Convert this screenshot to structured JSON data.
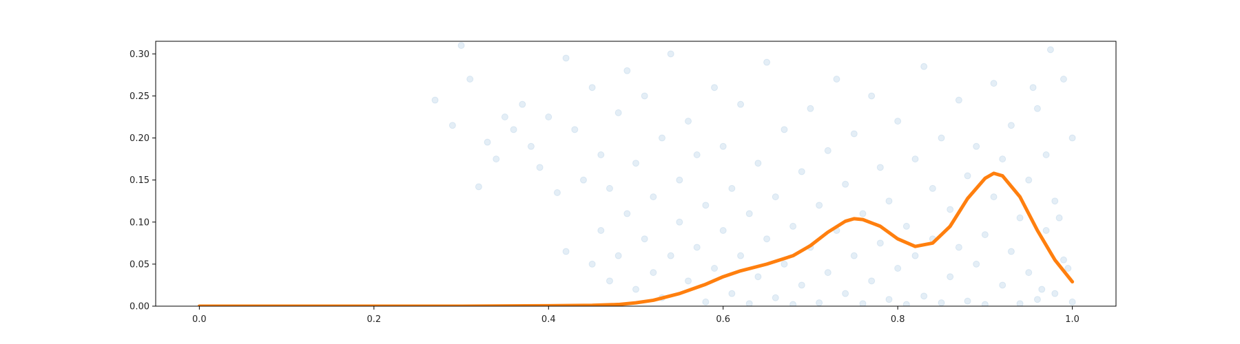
{
  "chart_data": {
    "type": "scatter",
    "title": "",
    "xlabel": "",
    "ylabel": "",
    "xlim": [
      -0.05,
      1.05
    ],
    "ylim": [
      0.0,
      0.315
    ],
    "x_ticks": [
      0.0,
      0.2,
      0.4,
      0.6,
      0.8,
      1.0
    ],
    "x_tick_labels": [
      "0.0",
      "0.2",
      "0.4",
      "0.6",
      "0.8",
      "1.0"
    ],
    "y_ticks": [
      0.0,
      0.05,
      0.1,
      0.15,
      0.2,
      0.25,
      0.3
    ],
    "y_tick_labels": [
      "0.00",
      "0.05",
      "0.10",
      "0.15",
      "0.20",
      "0.25",
      "0.30"
    ],
    "grid": false,
    "legend": "none",
    "series": [
      {
        "kind": "scatter",
        "color": "#1f77b4",
        "alpha": 0.12,
        "points": [
          [
            0.27,
            0.245
          ],
          [
            0.29,
            0.215
          ],
          [
            0.3,
            0.31
          ],
          [
            0.31,
            0.27
          ],
          [
            0.32,
            0.142
          ],
          [
            0.33,
            0.195
          ],
          [
            0.34,
            0.175
          ],
          [
            0.35,
            0.225
          ],
          [
            0.36,
            0.21
          ],
          [
            0.37,
            0.24
          ],
          [
            0.38,
            0.19
          ],
          [
            0.39,
            0.165
          ],
          [
            0.4,
            0.225
          ],
          [
            0.41,
            0.135
          ],
          [
            0.42,
            0.065
          ],
          [
            0.42,
            0.295
          ],
          [
            0.43,
            0.21
          ],
          [
            0.44,
            0.15
          ],
          [
            0.45,
            0.05
          ],
          [
            0.45,
            0.26
          ],
          [
            0.46,
            0.09
          ],
          [
            0.46,
            0.18
          ],
          [
            0.47,
            0.03
          ],
          [
            0.47,
            0.14
          ],
          [
            0.48,
            0.23
          ],
          [
            0.48,
            0.06
          ],
          [
            0.49,
            0.11
          ],
          [
            0.49,
            0.28
          ],
          [
            0.5,
            0.02
          ],
          [
            0.5,
            0.17
          ],
          [
            0.51,
            0.08
          ],
          [
            0.51,
            0.25
          ],
          [
            0.52,
            0.04
          ],
          [
            0.52,
            0.13
          ],
          [
            0.53,
            0.2
          ],
          [
            0.53,
            0.01
          ],
          [
            0.54,
            0.06
          ],
          [
            0.54,
            0.3
          ],
          [
            0.55,
            0.1
          ],
          [
            0.55,
            0.15
          ],
          [
            0.56,
            0.03
          ],
          [
            0.56,
            0.22
          ],
          [
            0.57,
            0.07
          ],
          [
            0.57,
            0.18
          ],
          [
            0.58,
            0.005
          ],
          [
            0.58,
            0.12
          ],
          [
            0.59,
            0.26
          ],
          [
            0.59,
            0.045
          ],
          [
            0.6,
            0.09
          ],
          [
            0.6,
            0.19
          ],
          [
            0.61,
            0.015
          ],
          [
            0.61,
            0.14
          ],
          [
            0.62,
            0.06
          ],
          [
            0.62,
            0.24
          ],
          [
            0.63,
            0.003
          ],
          [
            0.63,
            0.11
          ],
          [
            0.64,
            0.035
          ],
          [
            0.64,
            0.17
          ],
          [
            0.65,
            0.08
          ],
          [
            0.65,
            0.29
          ],
          [
            0.66,
            0.01
          ],
          [
            0.66,
            0.13
          ],
          [
            0.67,
            0.05
          ],
          [
            0.67,
            0.21
          ],
          [
            0.68,
            0.002
          ],
          [
            0.68,
            0.095
          ],
          [
            0.69,
            0.16
          ],
          [
            0.69,
            0.025
          ],
          [
            0.7,
            0.07
          ],
          [
            0.7,
            0.235
          ],
          [
            0.71,
            0.004
          ],
          [
            0.71,
            0.12
          ],
          [
            0.72,
            0.04
          ],
          [
            0.72,
            0.185
          ],
          [
            0.73,
            0.09
          ],
          [
            0.73,
            0.27
          ],
          [
            0.74,
            0.015
          ],
          [
            0.74,
            0.145
          ],
          [
            0.75,
            0.06
          ],
          [
            0.75,
            0.205
          ],
          [
            0.76,
            0.003
          ],
          [
            0.76,
            0.11
          ],
          [
            0.77,
            0.03
          ],
          [
            0.77,
            0.25
          ],
          [
            0.78,
            0.075
          ],
          [
            0.78,
            0.165
          ],
          [
            0.79,
            0.008
          ],
          [
            0.79,
            0.125
          ],
          [
            0.8,
            0.045
          ],
          [
            0.8,
            0.22
          ],
          [
            0.81,
            0.002
          ],
          [
            0.81,
            0.095
          ],
          [
            0.82,
            0.06
          ],
          [
            0.82,
            0.175
          ],
          [
            0.83,
            0.012
          ],
          [
            0.83,
            0.285
          ],
          [
            0.84,
            0.08
          ],
          [
            0.84,
            0.14
          ],
          [
            0.85,
            0.004
          ],
          [
            0.85,
            0.2
          ],
          [
            0.86,
            0.035
          ],
          [
            0.86,
            0.115
          ],
          [
            0.87,
            0.07
          ],
          [
            0.87,
            0.245
          ],
          [
            0.88,
            0.006
          ],
          [
            0.88,
            0.155
          ],
          [
            0.89,
            0.05
          ],
          [
            0.89,
            0.19
          ],
          [
            0.9,
            0.002
          ],
          [
            0.9,
            0.085
          ],
          [
            0.91,
            0.13
          ],
          [
            0.91,
            0.265
          ],
          [
            0.92,
            0.025
          ],
          [
            0.92,
            0.175
          ],
          [
            0.93,
            0.065
          ],
          [
            0.93,
            0.215
          ],
          [
            0.94,
            0.003
          ],
          [
            0.94,
            0.105
          ],
          [
            0.95,
            0.04
          ],
          [
            0.95,
            0.15
          ],
          [
            0.96,
            0.008
          ],
          [
            0.96,
            0.235
          ],
          [
            0.97,
            0.09
          ],
          [
            0.97,
            0.18
          ],
          [
            0.98,
            0.015
          ],
          [
            0.98,
            0.125
          ],
          [
            0.99,
            0.055
          ],
          [
            0.99,
            0.27
          ],
          [
            1.0,
            0.005
          ],
          [
            1.0,
            0.2
          ],
          [
            0.995,
            0.045
          ],
          [
            0.985,
            0.105
          ],
          [
            0.975,
            0.305
          ],
          [
            0.965,
            0.02
          ],
          [
            0.955,
            0.26
          ]
        ]
      },
      {
        "kind": "line",
        "color": "#ff7f0e",
        "x": [
          0.0,
          0.1,
          0.2,
          0.3,
          0.4,
          0.45,
          0.48,
          0.5,
          0.52,
          0.55,
          0.58,
          0.6,
          0.62,
          0.65,
          0.68,
          0.7,
          0.72,
          0.74,
          0.75,
          0.76,
          0.78,
          0.8,
          0.82,
          0.84,
          0.86,
          0.88,
          0.9,
          0.91,
          0.92,
          0.94,
          0.96,
          0.98,
          1.0
        ],
        "y": [
          0.0,
          0.0,
          0.0,
          0.0,
          0.0005,
          0.001,
          0.002,
          0.004,
          0.007,
          0.015,
          0.026,
          0.035,
          0.042,
          0.05,
          0.06,
          0.072,
          0.088,
          0.101,
          0.104,
          0.103,
          0.095,
          0.08,
          0.071,
          0.075,
          0.095,
          0.128,
          0.152,
          0.158,
          0.155,
          0.13,
          0.09,
          0.055,
          0.029
        ]
      }
    ]
  }
}
